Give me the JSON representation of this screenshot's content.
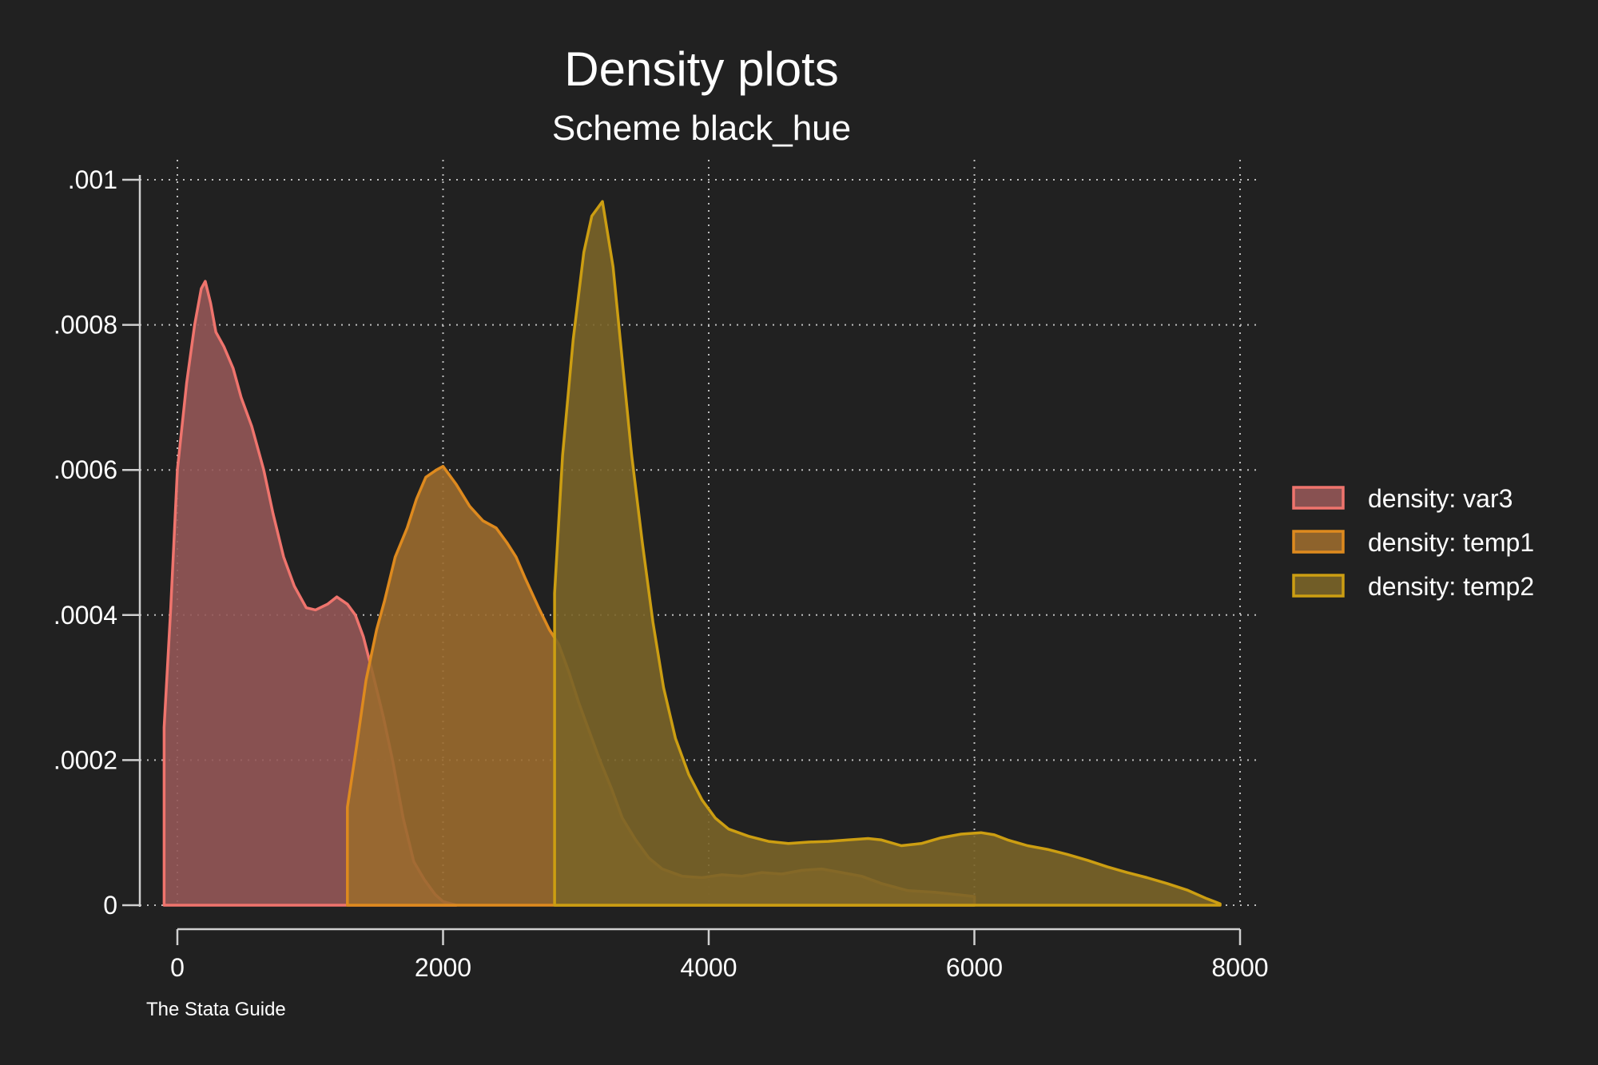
{
  "chart_data": {
    "type": "area",
    "title": "Density plots",
    "subtitle": "Scheme black_hue",
    "note": "The Stata Guide",
    "xlabel": "",
    "ylabel": "",
    "xlim": [
      0,
      8000
    ],
    "ylim": [
      0,
      0.001
    ],
    "x_ticks": [
      {
        "value": 0,
        "label": "0"
      },
      {
        "value": 2000,
        "label": "2000"
      },
      {
        "value": 4000,
        "label": "4000"
      },
      {
        "value": 6000,
        "label": "6000"
      },
      {
        "value": 8000,
        "label": "8000"
      }
    ],
    "y_ticks": [
      {
        "value": 0,
        "label": "0"
      },
      {
        "value": 0.0002,
        "label": ".0002"
      },
      {
        "value": 0.0004,
        "label": ".0004"
      },
      {
        "value": 0.0006,
        "label": ".0006"
      },
      {
        "value": 0.0008,
        "label": ".0008"
      },
      {
        "value": 0.001,
        "label": ".001"
      }
    ],
    "grid": true,
    "legend_position": "right",
    "series": [
      {
        "name": "density: var3",
        "line_color": "#ef746d",
        "fill_color": "#935757",
        "points": [
          [
            -100,
            0
          ],
          [
            -100,
            0.000245
          ],
          [
            -50,
            0.00041
          ],
          [
            0,
            0.0006
          ],
          [
            70,
            0.00072
          ],
          [
            130,
            0.0008
          ],
          [
            180,
            0.00085
          ],
          [
            210,
            0.00086
          ],
          [
            250,
            0.00083
          ],
          [
            290,
            0.00079
          ],
          [
            350,
            0.00077
          ],
          [
            420,
            0.00074
          ],
          [
            480,
            0.0007
          ],
          [
            560,
            0.00066
          ],
          [
            650,
            0.0006
          ],
          [
            720,
            0.00054
          ],
          [
            800,
            0.00048
          ],
          [
            880,
            0.00044
          ],
          [
            970,
            0.00041
          ],
          [
            1040,
            0.000407
          ],
          [
            1130,
            0.000415
          ],
          [
            1200,
            0.000425
          ],
          [
            1280,
            0.000415
          ],
          [
            1340,
            0.0004
          ],
          [
            1400,
            0.00037
          ],
          [
            1470,
            0.00032
          ],
          [
            1550,
            0.00026
          ],
          [
            1620,
            0.0002
          ],
          [
            1700,
            0.00012
          ],
          [
            1780,
            6e-05
          ],
          [
            1860,
            3.5e-05
          ],
          [
            1940,
            1.5e-05
          ],
          [
            2000,
            5e-06
          ],
          [
            2100,
            0
          ]
        ]
      },
      {
        "name": "density: temp1",
        "line_color": "#de8a1e",
        "fill_color": "#9a6a2e",
        "points": [
          [
            1280,
            0
          ],
          [
            1280,
            0.000135
          ],
          [
            1350,
            0.00022
          ],
          [
            1420,
            0.00031
          ],
          [
            1500,
            0.00038
          ],
          [
            1560,
            0.00042
          ],
          [
            1640,
            0.00048
          ],
          [
            1730,
            0.00052
          ],
          [
            1800,
            0.00056
          ],
          [
            1870,
            0.00059
          ],
          [
            1950,
            0.0006
          ],
          [
            2000,
            0.000605
          ],
          [
            2100,
            0.00058
          ],
          [
            2200,
            0.00055
          ],
          [
            2300,
            0.00053
          ],
          [
            2400,
            0.00052
          ],
          [
            2480,
            0.0005
          ],
          [
            2550,
            0.00048
          ],
          [
            2620,
            0.00045
          ],
          [
            2720,
            0.00041
          ],
          [
            2800,
            0.00038
          ],
          [
            2870,
            0.00036
          ],
          [
            2950,
            0.00032
          ],
          [
            3020,
            0.00028
          ],
          [
            3100,
            0.00024
          ],
          [
            3180,
            0.0002
          ],
          [
            3270,
            0.00016
          ],
          [
            3350,
            0.00012
          ],
          [
            3450,
            9e-05
          ],
          [
            3550,
            6.5e-05
          ],
          [
            3650,
            5e-05
          ],
          [
            3800,
            4e-05
          ],
          [
            3950,
            3.8e-05
          ],
          [
            4100,
            4.2e-05
          ],
          [
            4250,
            4e-05
          ],
          [
            4400,
            4.5e-05
          ],
          [
            4550,
            4.3e-05
          ],
          [
            4700,
            4.8e-05
          ],
          [
            4850,
            5e-05
          ],
          [
            5000,
            4.5e-05
          ],
          [
            5150,
            4e-05
          ],
          [
            5300,
            3e-05
          ],
          [
            5500,
            2e-05
          ],
          [
            5700,
            1.8e-05
          ],
          [
            5850,
            1.5e-05
          ],
          [
            6000,
            1.2e-05
          ],
          [
            6000,
            0
          ]
        ]
      },
      {
        "name": "density: temp2",
        "line_color": "#cc9e12",
        "fill_color": "#7a6428",
        "points": [
          [
            2840,
            0
          ],
          [
            2840,
            0.00043
          ],
          [
            2900,
            0.00062
          ],
          [
            2980,
            0.00078
          ],
          [
            3060,
            0.0009
          ],
          [
            3120,
            0.00095
          ],
          [
            3200,
            0.00097
          ],
          [
            3280,
            0.00088
          ],
          [
            3350,
            0.00075
          ],
          [
            3420,
            0.00062
          ],
          [
            3500,
            0.0005
          ],
          [
            3580,
            0.00039
          ],
          [
            3660,
            0.0003
          ],
          [
            3750,
            0.00023
          ],
          [
            3850,
            0.00018
          ],
          [
            3950,
            0.000145
          ],
          [
            4050,
            0.00012
          ],
          [
            4150,
            0.000105
          ],
          [
            4300,
            9.5e-05
          ],
          [
            4450,
            8.8e-05
          ],
          [
            4600,
            8.5e-05
          ],
          [
            4750,
            8.7e-05
          ],
          [
            4900,
            8.8e-05
          ],
          [
            5050,
            9e-05
          ],
          [
            5200,
            9.2e-05
          ],
          [
            5300,
            9e-05
          ],
          [
            5450,
            8.2e-05
          ],
          [
            5600,
            8.5e-05
          ],
          [
            5750,
            9.3e-05
          ],
          [
            5900,
            9.8e-05
          ],
          [
            6050,
            0.0001
          ],
          [
            6150,
            9.7e-05
          ],
          [
            6250,
            9e-05
          ],
          [
            6400,
            8.2e-05
          ],
          [
            6550,
            7.7e-05
          ],
          [
            6700,
            7e-05
          ],
          [
            6850,
            6.2e-05
          ],
          [
            7000,
            5.3e-05
          ],
          [
            7150,
            4.5e-05
          ],
          [
            7300,
            3.8e-05
          ],
          [
            7450,
            3e-05
          ],
          [
            7600,
            2.1e-05
          ],
          [
            7750,
            9e-06
          ],
          [
            7850,
            2e-06
          ],
          [
            7850,
            0
          ]
        ]
      }
    ]
  }
}
